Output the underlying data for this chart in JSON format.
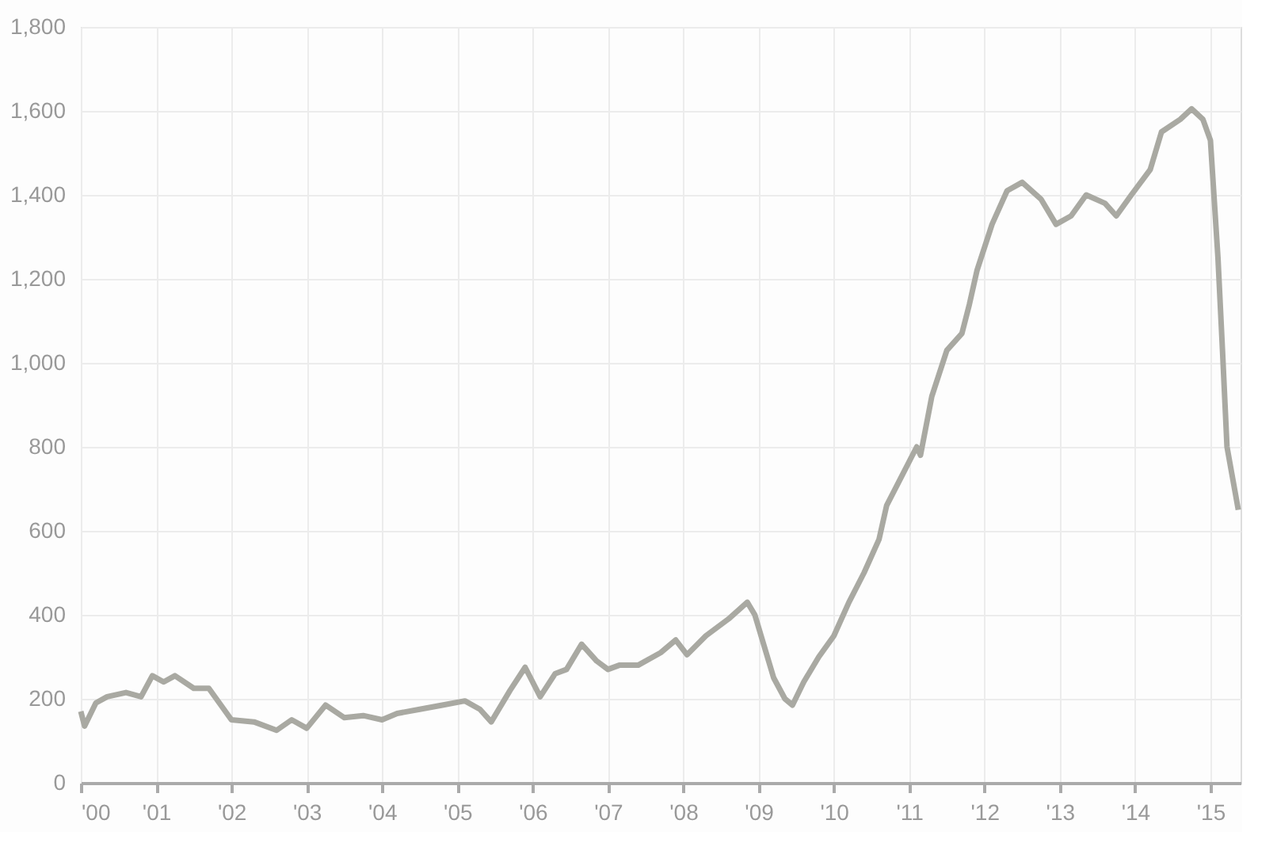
{
  "chart_data": {
    "type": "line",
    "x": [
      2000.0,
      2000.05,
      2000.2,
      2000.35,
      2000.6,
      2000.8,
      2000.95,
      2001.1,
      2001.25,
      2001.5,
      2001.7,
      2002.0,
      2002.3,
      2002.6,
      2002.8,
      2003.0,
      2003.25,
      2003.5,
      2003.75,
      2004.0,
      2004.2,
      2004.5,
      2004.8,
      2005.1,
      2005.3,
      2005.45,
      2005.7,
      2005.9,
      2006.1,
      2006.3,
      2006.45,
      2006.65,
      2006.85,
      2007.0,
      2007.15,
      2007.4,
      2007.7,
      2007.9,
      2008.05,
      2008.3,
      2008.6,
      2008.85,
      2008.95,
      2009.2,
      2009.35,
      2009.45,
      2009.6,
      2009.8,
      2010.0,
      2010.2,
      2010.4,
      2010.6,
      2010.7,
      2010.9,
      2011.1,
      2011.15,
      2011.3,
      2011.5,
      2011.7,
      2011.8,
      2011.9,
      2012.1,
      2012.3,
      2012.5,
      2012.75,
      2012.95,
      2013.15,
      2013.35,
      2013.6,
      2013.75,
      2013.95,
      2014.2,
      2014.35,
      2014.6,
      2014.75,
      2014.9,
      2015.0,
      2015.1,
      2015.16,
      2015.22,
      2015.3,
      2015.37
    ],
    "series": [
      {
        "color": "#a9a9a2",
        "values": [
          170,
          135,
          190,
          205,
          215,
          205,
          255,
          240,
          255,
          225,
          225,
          150,
          145,
          125,
          150,
          130,
          185,
          155,
          160,
          150,
          165,
          175,
          185,
          195,
          175,
          145,
          220,
          275,
          205,
          260,
          270,
          330,
          290,
          270,
          280,
          280,
          310,
          340,
          305,
          350,
          390,
          430,
          400,
          250,
          200,
          185,
          240,
          300,
          350,
          430,
          500,
          580,
          660,
          730,
          800,
          780,
          920,
          1030,
          1070,
          1140,
          1220,
          1330,
          1410,
          1430,
          1390,
          1330,
          1350,
          1400,
          1380,
          1350,
          1400,
          1460,
          1550,
          1580,
          1605,
          1580,
          1530,
          1250,
          1030,
          800,
          720,
          650
        ]
      }
    ],
    "xlim": [
      2000,
      2015.4
    ],
    "xticks": [
      {
        "value": 2000,
        "label": "'00"
      },
      {
        "value": 2001,
        "label": "'01"
      },
      {
        "value": 2002,
        "label": "'02"
      },
      {
        "value": 2003,
        "label": "'03"
      },
      {
        "value": 2004,
        "label": "'04"
      },
      {
        "value": 2005,
        "label": "'05"
      },
      {
        "value": 2006,
        "label": "'06"
      },
      {
        "value": 2007,
        "label": "'07"
      },
      {
        "value": 2008,
        "label": "'08"
      },
      {
        "value": 2009,
        "label": "'09"
      },
      {
        "value": 2010,
        "label": "'10"
      },
      {
        "value": 2011,
        "label": "'11"
      },
      {
        "value": 2012,
        "label": "'12"
      },
      {
        "value": 2013,
        "label": "'13"
      },
      {
        "value": 2014,
        "label": "'14"
      },
      {
        "value": 2015,
        "label": "'15"
      }
    ],
    "ylim": [
      0,
      1800
    ],
    "yticks": [
      0,
      200,
      400,
      600,
      800,
      {
        "value": 1000,
        "label": "1,000"
      },
      {
        "value": 1200,
        "label": "1,200"
      },
      {
        "value": 1400,
        "label": "1,400"
      },
      {
        "value": 1600,
        "label": "1,600"
      },
      {
        "value": 1800,
        "label": "1,800"
      }
    ],
    "grid": true,
    "line_style": "solid"
  }
}
